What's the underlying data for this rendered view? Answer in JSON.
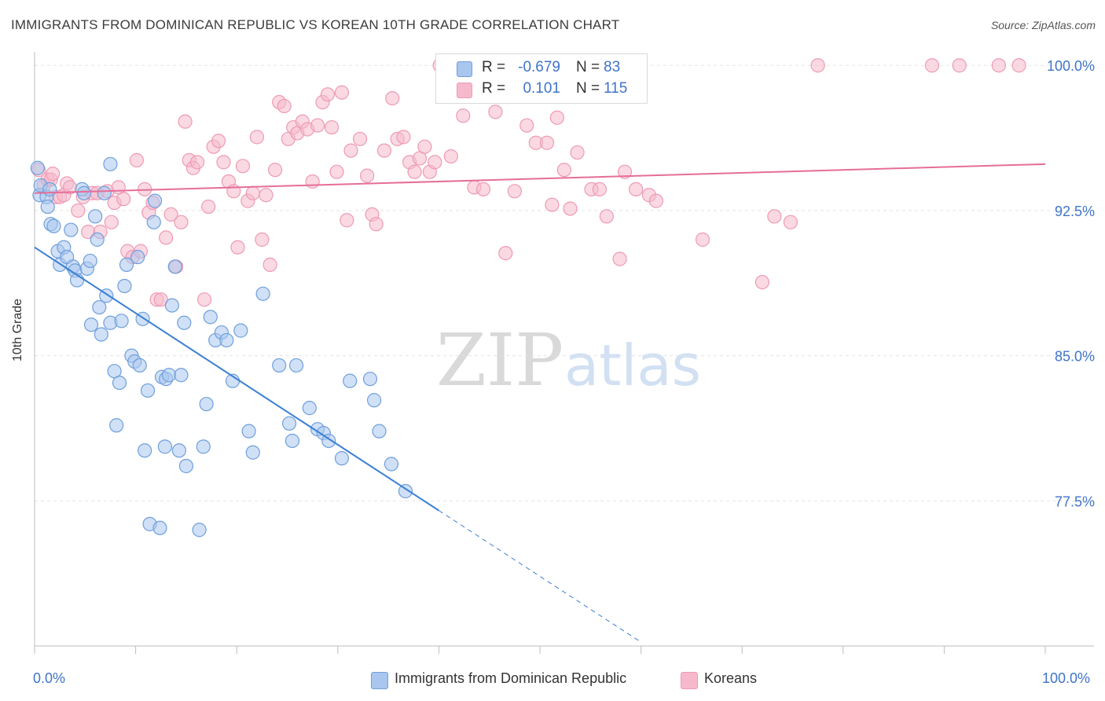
{
  "title": "IMMIGRANTS FROM DOMINICAN REPUBLIC VS KOREAN 10TH GRADE CORRELATION CHART",
  "source": "Source: ZipAtlas.com",
  "watermark": {
    "zip": "ZIP",
    "atlas": "atlas"
  },
  "legend_top": {
    "rows": [
      {
        "r_label": "R =",
        "r_value": "-0.679",
        "n_label": "N =",
        "n_value": "83"
      },
      {
        "r_label": "R =",
        "r_value": "0.101",
        "n_label": "N =",
        "n_value": "115"
      }
    ]
  },
  "legend_bottom": [
    "Immigrants from Dominican Republic",
    "Koreans"
  ],
  "x_tick_labels": {
    "left": "0.0%",
    "right": "100.0%"
  },
  "colors": {
    "blue_fill": "#a9c6ee",
    "blue_stroke": "#6f9fdc",
    "blue_line": "#3a7fd5",
    "pink_fill": "#f6b9cc",
    "pink_stroke": "#ee9ab4",
    "pink_line": "#e56e98",
    "axis_label": "#3f74c9",
    "grid": "#e4e4e4"
  },
  "chart_data": {
    "type": "scatter",
    "title": "IMMIGRANTS FROM DOMINICAN REPUBLIC VS KOREAN 10TH GRADE CORRELATION CHART",
    "xlabel": "",
    "ylabel": "10th Grade",
    "xlim": [
      0,
      100
    ],
    "ylim": [
      70.0,
      100.7
    ],
    "y_ticks": [
      77.5,
      85.0,
      92.5,
      100.0
    ],
    "y_tick_labels": [
      "77.5%",
      "85.0%",
      "92.5%",
      "100.0%"
    ],
    "grid": "horizontal dashed",
    "legend_placement": "top-center",
    "series": [
      {
        "name": "Immigrants from Dominican Republic",
        "r": -0.679,
        "n": 83,
        "trend": {
          "x0": 0.0,
          "y0": 90.6,
          "x1": 40.0,
          "y1": 77.0,
          "dashed_to_x": 60.0
        },
        "points": [
          [
            0.3,
            94.7
          ],
          [
            0.5,
            93.3
          ],
          [
            0.6,
            93.8
          ],
          [
            1.2,
            93.2
          ],
          [
            1.3,
            92.7
          ],
          [
            1.5,
            93.6
          ],
          [
            1.6,
            91.8
          ],
          [
            1.9,
            91.7
          ],
          [
            2.3,
            90.4
          ],
          [
            2.5,
            89.7
          ],
          [
            2.9,
            90.6
          ],
          [
            3.2,
            90.1
          ],
          [
            3.6,
            91.5
          ],
          [
            3.8,
            89.6
          ],
          [
            4.0,
            89.4
          ],
          [
            4.2,
            88.9
          ],
          [
            4.7,
            93.6
          ],
          [
            5.2,
            89.5
          ],
          [
            5.5,
            89.9
          ],
          [
            5.6,
            86.6
          ],
          [
            6.0,
            92.2
          ],
          [
            6.2,
            91.0
          ],
          [
            6.4,
            87.5
          ],
          [
            6.6,
            86.1
          ],
          [
            6.9,
            93.4
          ],
          [
            7.1,
            88.1
          ],
          [
            7.5,
            86.7
          ],
          [
            7.5,
            94.9
          ],
          [
            7.9,
            84.2
          ],
          [
            8.1,
            81.4
          ],
          [
            8.4,
            83.6
          ],
          [
            8.6,
            86.8
          ],
          [
            8.9,
            88.6
          ],
          [
            9.1,
            89.7
          ],
          [
            9.6,
            85.0
          ],
          [
            9.9,
            84.7
          ],
          [
            10.2,
            90.1
          ],
          [
            10.4,
            84.5
          ],
          [
            10.7,
            86.9
          ],
          [
            10.9,
            80.1
          ],
          [
            11.2,
            83.2
          ],
          [
            11.4,
            76.3
          ],
          [
            11.8,
            91.9
          ],
          [
            11.9,
            93.0
          ],
          [
            12.4,
            76.1
          ],
          [
            12.6,
            83.9
          ],
          [
            12.9,
            80.3
          ],
          [
            13.0,
            83.8
          ],
          [
            13.3,
            84.0
          ],
          [
            13.6,
            87.6
          ],
          [
            13.9,
            89.6
          ],
          [
            14.3,
            80.1
          ],
          [
            14.5,
            84.0
          ],
          [
            14.8,
            86.7
          ],
          [
            15.0,
            79.3
          ],
          [
            16.3,
            76.0
          ],
          [
            16.7,
            80.3
          ],
          [
            17.0,
            82.5
          ],
          [
            17.4,
            87.0
          ],
          [
            17.9,
            85.8
          ],
          [
            18.5,
            86.2
          ],
          [
            19.0,
            85.8
          ],
          [
            19.6,
            83.7
          ],
          [
            20.4,
            86.3
          ],
          [
            21.2,
            81.1
          ],
          [
            21.6,
            80.0
          ],
          [
            22.6,
            88.2
          ],
          [
            24.2,
            84.5
          ],
          [
            25.2,
            81.5
          ],
          [
            25.5,
            80.6
          ],
          [
            25.9,
            84.5
          ],
          [
            27.2,
            82.3
          ],
          [
            28.0,
            81.2
          ],
          [
            28.6,
            81.0
          ],
          [
            29.1,
            80.6
          ],
          [
            30.4,
            79.7
          ],
          [
            31.2,
            83.7
          ],
          [
            33.2,
            83.8
          ],
          [
            33.6,
            82.7
          ],
          [
            34.1,
            81.1
          ],
          [
            35.3,
            79.4
          ],
          [
            36.7,
            78.0
          ],
          [
            4.9,
            93.4
          ]
        ]
      },
      {
        "name": "Koreans",
        "r": 0.101,
        "n": 115,
        "trend": {
          "x0": 0.0,
          "y0": 93.4,
          "x1": 100.0,
          "y1": 94.9
        },
        "points": [
          [
            0.4,
            94.6
          ],
          [
            0.9,
            93.8
          ],
          [
            1.3,
            94.1
          ],
          [
            1.6,
            94.1
          ],
          [
            1.8,
            94.4
          ],
          [
            2.1,
            93.2
          ],
          [
            2.5,
            93.2
          ],
          [
            2.9,
            93.3
          ],
          [
            3.2,
            93.9
          ],
          [
            3.5,
            93.7
          ],
          [
            4.3,
            92.5
          ],
          [
            4.8,
            93.2
          ],
          [
            5.3,
            91.4
          ],
          [
            5.7,
            93.4
          ],
          [
            6.2,
            93.4
          ],
          [
            6.5,
            91.4
          ],
          [
            7.2,
            93.5
          ],
          [
            7.6,
            91.9
          ],
          [
            7.9,
            92.9
          ],
          [
            8.3,
            93.7
          ],
          [
            8.8,
            93.1
          ],
          [
            9.2,
            90.4
          ],
          [
            9.7,
            90.1
          ],
          [
            10.1,
            95.1
          ],
          [
            10.5,
            90.4
          ],
          [
            10.9,
            93.6
          ],
          [
            11.3,
            92.4
          ],
          [
            11.7,
            92.9
          ],
          [
            12.1,
            87.9
          ],
          [
            12.5,
            87.9
          ],
          [
            13.0,
            91.1
          ],
          [
            13.5,
            92.3
          ],
          [
            14.0,
            89.6
          ],
          [
            14.5,
            91.9
          ],
          [
            14.9,
            97.1
          ],
          [
            15.3,
            95.1
          ],
          [
            15.7,
            94.7
          ],
          [
            16.1,
            95.0
          ],
          [
            16.8,
            87.9
          ],
          [
            17.2,
            92.7
          ],
          [
            17.7,
            95.8
          ],
          [
            18.2,
            96.1
          ],
          [
            18.7,
            95.0
          ],
          [
            19.2,
            94.0
          ],
          [
            19.7,
            93.5
          ],
          [
            20.1,
            90.6
          ],
          [
            20.6,
            94.8
          ],
          [
            21.1,
            93.0
          ],
          [
            21.6,
            93.4
          ],
          [
            22.0,
            96.3
          ],
          [
            22.5,
            91.0
          ],
          [
            22.9,
            93.3
          ],
          [
            23.3,
            89.7
          ],
          [
            23.8,
            94.6
          ],
          [
            24.2,
            98.1
          ],
          [
            24.7,
            97.9
          ],
          [
            25.1,
            96.2
          ],
          [
            25.6,
            96.8
          ],
          [
            26.0,
            96.5
          ],
          [
            26.5,
            97.1
          ],
          [
            27.0,
            96.7
          ],
          [
            27.5,
            94.0
          ],
          [
            28.0,
            96.9
          ],
          [
            28.5,
            98.1
          ],
          [
            29.0,
            98.5
          ],
          [
            29.4,
            96.8
          ],
          [
            29.9,
            94.5
          ],
          [
            30.4,
            98.6
          ],
          [
            30.9,
            92.0
          ],
          [
            31.3,
            95.6
          ],
          [
            32.2,
            96.2
          ],
          [
            32.9,
            94.3
          ],
          [
            33.4,
            92.3
          ],
          [
            33.8,
            91.8
          ],
          [
            34.6,
            95.6
          ],
          [
            35.4,
            98.3
          ],
          [
            35.9,
            96.2
          ],
          [
            36.5,
            96.3
          ],
          [
            37.1,
            95.0
          ],
          [
            37.6,
            94.5
          ],
          [
            38.1,
            95.2
          ],
          [
            38.6,
            95.8
          ],
          [
            39.1,
            94.5
          ],
          [
            39.6,
            95.0
          ],
          [
            40.1,
            100.0
          ],
          [
            41.2,
            95.3
          ],
          [
            42.4,
            97.4
          ],
          [
            43.5,
            93.7
          ],
          [
            44.4,
            93.6
          ],
          [
            45.6,
            97.6
          ],
          [
            46.6,
            90.3
          ],
          [
            47.5,
            93.5
          ],
          [
            48.7,
            96.9
          ],
          [
            49.6,
            96.0
          ],
          [
            50.7,
            96.0
          ],
          [
            51.2,
            92.8
          ],
          [
            51.7,
            97.3
          ],
          [
            52.4,
            94.6
          ],
          [
            53.0,
            92.6
          ],
          [
            53.7,
            95.5
          ],
          [
            55.1,
            93.6
          ],
          [
            55.9,
            93.6
          ],
          [
            56.6,
            92.2
          ],
          [
            57.9,
            90.0
          ],
          [
            58.4,
            94.5
          ],
          [
            59.5,
            93.6
          ],
          [
            60.8,
            93.3
          ],
          [
            61.5,
            93.0
          ],
          [
            66.1,
            91.0
          ],
          [
            72.0,
            88.8
          ],
          [
            73.2,
            92.2
          ],
          [
            74.8,
            91.9
          ],
          [
            77.5,
            100.0
          ],
          [
            88.8,
            100.0
          ],
          [
            91.5,
            100.0
          ],
          [
            95.4,
            100.0
          ],
          [
            97.4,
            100.0
          ]
        ]
      }
    ]
  }
}
